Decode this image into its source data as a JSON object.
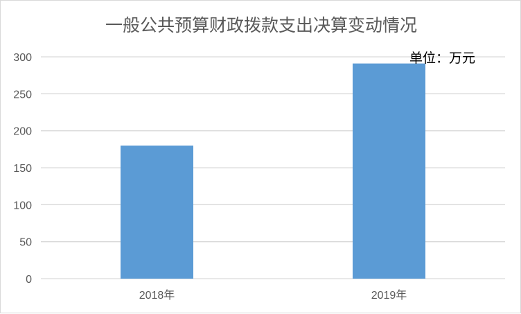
{
  "chart_data": {
    "type": "bar",
    "title": "一般公共预算财政拨款支出决算变动情况",
    "unit_note": "单位：万元",
    "categories": [
      "2018年",
      "2019年"
    ],
    "values": [
      180,
      291
    ],
    "ylim": [
      0,
      300
    ],
    "yticks": [
      0,
      50,
      100,
      150,
      200,
      250,
      300
    ],
    "grid": true,
    "bar_color": "#5b9bd5"
  }
}
